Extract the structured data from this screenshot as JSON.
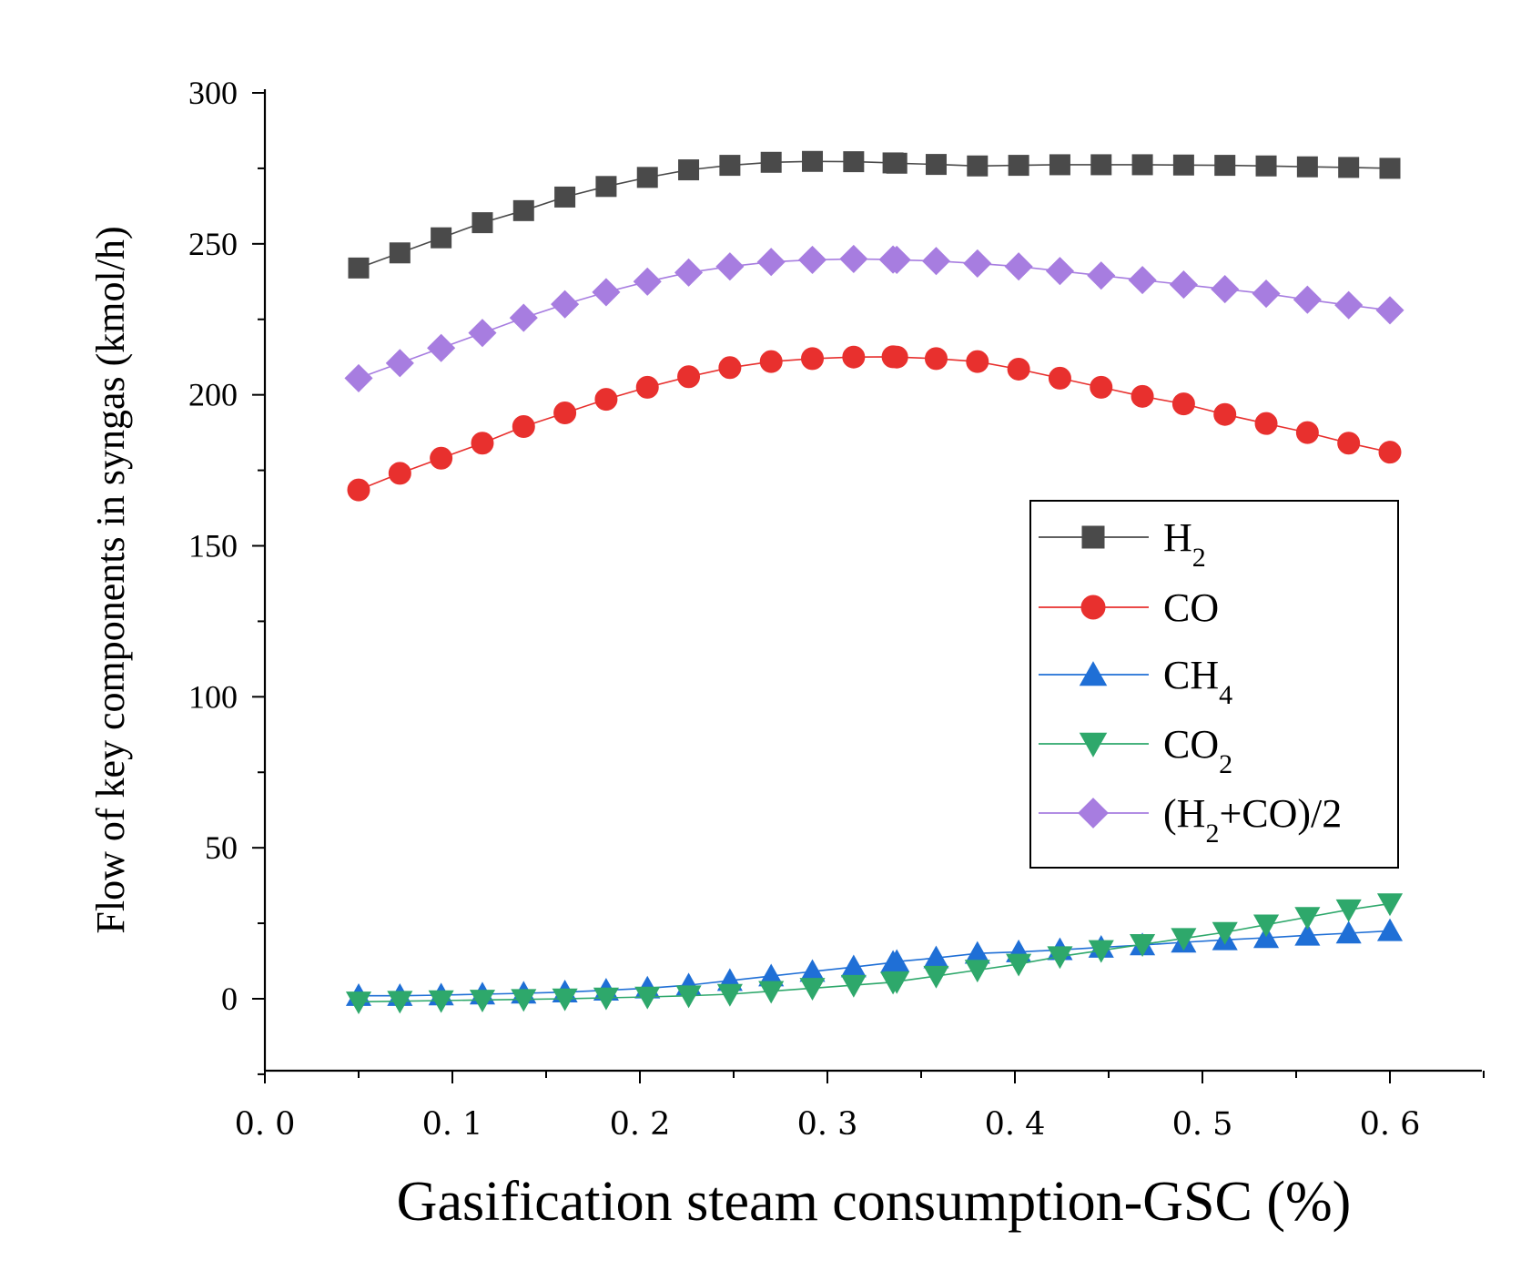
{
  "chart_data": {
    "type": "line",
    "title": "",
    "xlabel": "Gasification steam consumption-GSC (%)",
    "ylabel": "Flow of key components in syngas (kmol/h)",
    "xlim": [
      0,
      0.65
    ],
    "ylim": [
      -25,
      300
    ],
    "x_ticks": [
      0,
      0.1,
      0.2,
      0.3,
      0.4,
      0.5,
      0.6
    ],
    "x_tick_labels": [
      "0. 0",
      "0. 1",
      "0. 2",
      "0. 3",
      "0. 4",
      "0. 5",
      "0. 6"
    ],
    "y_ticks": [
      0,
      50,
      100,
      150,
      200,
      250,
      300
    ],
    "y_tick_labels": [
      "0",
      "50",
      "100",
      "150",
      "200",
      "250",
      "300"
    ],
    "grid": false,
    "legend_position": "right",
    "x": [
      0.05,
      0.072,
      0.094,
      0.116,
      0.138,
      0.16,
      0.182,
      0.204,
      0.226,
      0.248,
      0.27,
      0.292,
      0.314,
      0.335,
      0.337,
      0.358,
      0.38,
      0.402,
      0.424,
      0.446,
      0.468,
      0.49,
      0.512,
      0.534,
      0.556,
      0.578,
      0.6
    ],
    "series": [
      {
        "name": "H2",
        "legend": {
          "base": "H",
          "sub": "2",
          "after": ""
        },
        "color": "#4a4a4a",
        "marker": "square",
        "values": [
          242,
          247,
          252,
          257,
          261,
          265.5,
          269,
          272,
          274.5,
          276,
          277,
          277.3,
          277.2,
          276.8,
          276.7,
          276.3,
          275.8,
          276,
          276.2,
          276.2,
          276.2,
          276.1,
          276,
          275.8,
          275.5,
          275.3,
          275
        ]
      },
      {
        "name": "CO",
        "legend": {
          "base": "CO",
          "sub": "",
          "after": ""
        },
        "color": "#e8302e",
        "marker": "circle",
        "values": [
          168.5,
          174,
          179,
          184,
          189.5,
          194,
          198.5,
          202.5,
          206,
          209,
          211,
          212,
          212.5,
          212.6,
          212.5,
          212,
          211,
          208.5,
          205.5,
          202.5,
          199.5,
          197,
          193.5,
          190.5,
          187.5,
          184,
          181
        ]
      },
      {
        "name": "CH4",
        "legend": {
          "base": "CH",
          "sub": "4",
          "after": ""
        },
        "color": "#1f6fd6",
        "marker": "triangle-up",
        "values": [
          1,
          1,
          1.2,
          1.5,
          1.8,
          2.2,
          2.8,
          3.5,
          4.5,
          6,
          7.5,
          9,
          10.5,
          12,
          12.3,
          13.5,
          15,
          15.5,
          16.2,
          17,
          17.8,
          18.7,
          19.5,
          20.2,
          21,
          21.7,
          22.5
        ]
      },
      {
        "name": "CO2",
        "legend": {
          "base": "CO",
          "sub": "2",
          "after": ""
        },
        "color": "#2ea86b",
        "marker": "triangle-down",
        "values": [
          -1,
          -0.8,
          -0.6,
          -0.4,
          -0.2,
          0,
          0.3,
          0.6,
          1,
          1.5,
          2.5,
          3.5,
          4.5,
          5.5,
          5.7,
          7.5,
          9.5,
          11.5,
          14,
          16,
          18,
          20,
          22,
          24.5,
          27,
          29.5,
          31.5
        ]
      },
      {
        "name": "(H2+CO)/2",
        "legend": {
          "base": "(H",
          "sub": "2",
          "after": "+CO)/2"
        },
        "color": "#a77de0",
        "marker": "diamond",
        "values": [
          205.5,
          210.5,
          215.5,
          220.5,
          225.5,
          230,
          234,
          237.5,
          240.5,
          242.5,
          244,
          244.7,
          245,
          244.8,
          244.7,
          244.3,
          243.5,
          242.5,
          241,
          239.5,
          238,
          236.5,
          235,
          233.5,
          231.5,
          229.7,
          228
        ]
      }
    ]
  }
}
